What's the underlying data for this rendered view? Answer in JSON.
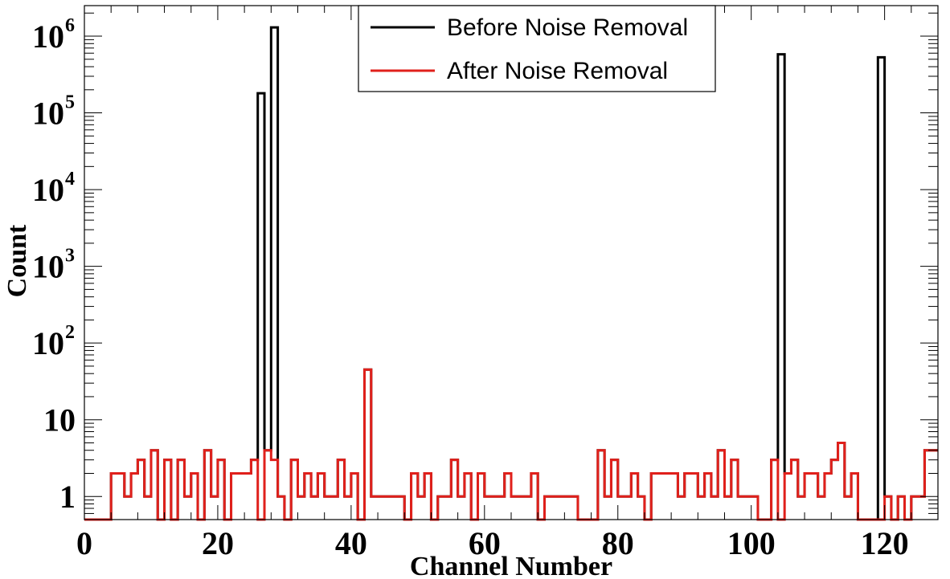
{
  "chart_data": {
    "type": "line",
    "xlabel": "Channel Number",
    "ylabel": "Count",
    "xlim": [
      0,
      128
    ],
    "ylim": [
      0.5,
      2500000
    ],
    "yscale": "log",
    "grid": false,
    "legend_position": "top-center",
    "x_ticks": [
      "0",
      "20",
      "40",
      "60",
      "80",
      "100",
      "120"
    ],
    "y_ticks": [
      {
        "base": "1",
        "exp": ""
      },
      {
        "base": "10",
        "exp": ""
      },
      {
        "base": "10",
        "exp": "2"
      },
      {
        "base": "10",
        "exp": "3"
      },
      {
        "base": "10",
        "exp": "4"
      },
      {
        "base": "10",
        "exp": "5"
      },
      {
        "base": "10",
        "exp": "6"
      }
    ],
    "series": [
      {
        "name": "Before Noise Removal",
        "color": "#000000",
        "values": [
          0,
          0,
          0,
          0,
          2,
          2,
          1,
          2,
          3,
          1,
          4,
          0,
          3,
          0,
          3,
          1,
          2,
          0,
          4,
          1,
          3,
          0,
          2,
          2,
          2,
          3,
          180000,
          4,
          1300000,
          1,
          0,
          3,
          1,
          2,
          1,
          2,
          1,
          1,
          3,
          1,
          2,
          0,
          45,
          1,
          1,
          1,
          1,
          1,
          0,
          2,
          1,
          2,
          0,
          1,
          1,
          3,
          1,
          2,
          0,
          2,
          1,
          1,
          1,
          2,
          1,
          1,
          1,
          2,
          0,
          1,
          1,
          1,
          1,
          1,
          0,
          0,
          0,
          4,
          1,
          3,
          1,
          1,
          2,
          1,
          0,
          2,
          2,
          2,
          2,
          1,
          2,
          2,
          1,
          2,
          1,
          4,
          1,
          3,
          1,
          1,
          1,
          0,
          0,
          3,
          580000,
          2,
          3,
          1,
          2,
          2,
          1,
          2,
          3,
          5,
          1,
          2,
          0,
          0,
          0,
          530000,
          1,
          0,
          1,
          0,
          1,
          1,
          4,
          4
        ]
      },
      {
        "name": "After Noise Removal",
        "color": "#e0201b",
        "values": [
          0,
          0,
          0,
          0,
          2,
          2,
          1,
          2,
          3,
          1,
          4,
          0,
          3,
          0,
          3,
          1,
          2,
          0,
          4,
          1,
          3,
          0,
          2,
          2,
          2,
          3,
          0,
          4,
          3,
          1,
          0,
          3,
          1,
          2,
          1,
          2,
          1,
          1,
          3,
          1,
          2,
          0,
          45,
          1,
          1,
          1,
          1,
          1,
          0,
          2,
          1,
          2,
          0,
          1,
          1,
          3,
          1,
          2,
          0,
          2,
          1,
          1,
          1,
          2,
          1,
          1,
          1,
          2,
          0,
          1,
          1,
          1,
          1,
          1,
          0,
          0,
          0,
          4,
          1,
          3,
          1,
          1,
          2,
          1,
          0,
          2,
          2,
          2,
          2,
          1,
          2,
          2,
          1,
          2,
          1,
          4,
          1,
          3,
          1,
          1,
          1,
          0,
          0,
          3,
          0,
          2,
          3,
          1,
          2,
          2,
          1,
          2,
          3,
          5,
          1,
          2,
          0,
          0,
          0,
          0,
          1,
          0,
          1,
          0,
          1,
          1,
          4,
          4
        ]
      }
    ]
  }
}
